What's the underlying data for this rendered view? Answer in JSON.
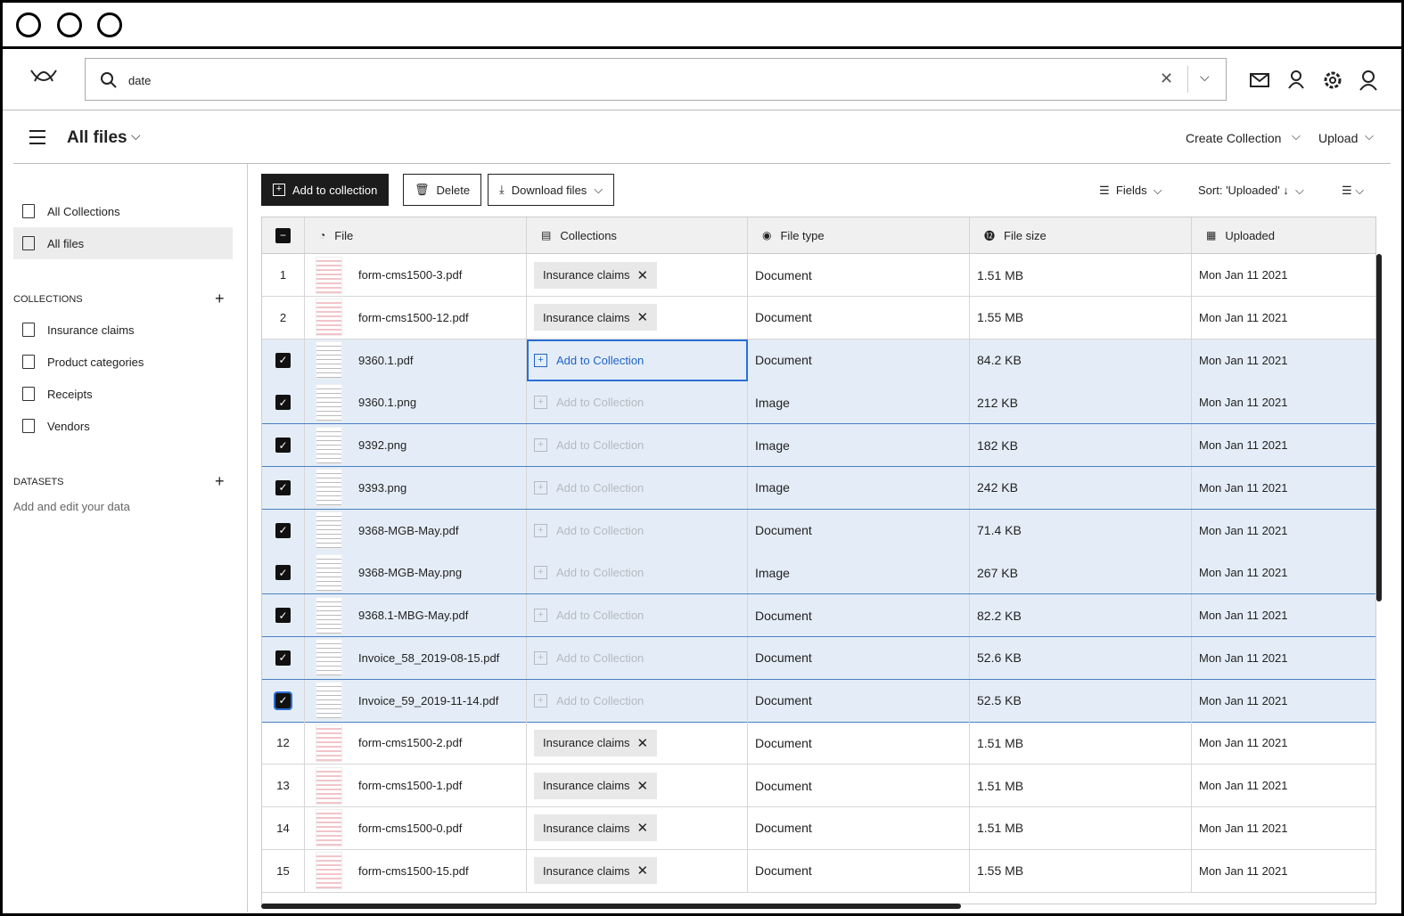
{
  "search": {
    "query": "date"
  },
  "header": {
    "title": "All files",
    "create_collection": "Create Collection",
    "upload": "Upload"
  },
  "sidebar": {
    "all_collections": "All Collections",
    "all_files": "All files",
    "collections_heading": "COLLECTIONS",
    "collections": [
      "Insurance claims",
      "Product categories",
      "Receipts",
      "Vendors"
    ],
    "datasets_heading": "DATASETS",
    "datasets_hint": "Add and edit your data"
  },
  "toolbar": {
    "add_to_collection": "Add to collection",
    "delete": "Delete",
    "download": "Download files",
    "fields": "Fields",
    "sort": "Sort: 'Uploaded'"
  },
  "table": {
    "columns": [
      "File",
      "Collections",
      "File type",
      "File size",
      "Uploaded"
    ],
    "rows": [
      {
        "index": 1,
        "file": "form-cms1500-3.pdf",
        "collection": "Insurance claims",
        "type": "Document",
        "size": "1.51 MB",
        "uploaded": "Mon Jan 11 2021"
      },
      {
        "index": 2,
        "file": "form-cms1500-12.pdf",
        "collection": "Insurance claims",
        "type": "Document",
        "size": "1.55 MB",
        "uploaded": "Mon Jan 11 2021"
      },
      {
        "selected": true,
        "focused": true,
        "file": "9360.1.pdf",
        "collection": "Add to Collection",
        "type": "Document",
        "size": "84.2 KB",
        "uploaded": "Mon Jan 11 2021"
      },
      {
        "selected": true,
        "file": "9360.1.png",
        "collection": "Add to Collection",
        "type": "Image",
        "size": "212 KB",
        "uploaded": "Mon Jan 11 2021"
      },
      {
        "selected": true,
        "file": "9392.png",
        "collection": "Add to Collection",
        "type": "Image",
        "size": "182 KB",
        "uploaded": "Mon Jan 11 2021"
      },
      {
        "selected": true,
        "file": "9393.png",
        "collection": "Add to Collection",
        "type": "Image",
        "size": "242 KB",
        "uploaded": "Mon Jan 11 2021"
      },
      {
        "selected": true,
        "file": "9368-MGB-May.pdf",
        "collection": "Add to Collection",
        "type": "Document",
        "size": "71.4 KB",
        "uploaded": "Mon Jan 11 2021"
      },
      {
        "selected": true,
        "file": "9368-MGB-May.png",
        "collection": "Add to Collection",
        "type": "Image",
        "size": "267 KB",
        "uploaded": "Mon Jan 11 2021"
      },
      {
        "selected": true,
        "file": "9368.1-MBG-May.pdf",
        "collection": "Add to Collection",
        "type": "Document",
        "size": "82.2 KB",
        "uploaded": "Mon Jan 11 2021"
      },
      {
        "selected": true,
        "file": "Invoice_58_2019-08-15.pdf",
        "collection": "Add to Collection",
        "type": "Document",
        "size": "52.6 KB",
        "uploaded": "Mon Jan 11 2021"
      },
      {
        "selected": true,
        "file": "Invoice_59_2019-11-14.pdf",
        "collection": "Add to Collection",
        "type": "Document",
        "size": "52.5 KB",
        "uploaded": "Mon Jan 11 2021"
      },
      {
        "index": 12,
        "file": "form-cms1500-2.pdf",
        "collection": "Insurance claims",
        "type": "Document",
        "size": "1.51 MB",
        "uploaded": "Mon Jan 11 2021"
      },
      {
        "index": 13,
        "file": "form-cms1500-1.pdf",
        "collection": "Insurance claims",
        "type": "Document",
        "size": "1.51 MB",
        "uploaded": "Mon Jan 11 2021"
      },
      {
        "index": 14,
        "file": "form-cms1500-0.pdf",
        "collection": "Insurance claims",
        "type": "Document",
        "size": "1.51 MB",
        "uploaded": "Mon Jan 11 2021"
      },
      {
        "index": 15,
        "file": "form-cms1500-15.pdf",
        "collection": "Insurance claims",
        "type": "Document",
        "size": "1.55 MB",
        "uploaded": "Mon Jan 11 2021"
      }
    ]
  }
}
